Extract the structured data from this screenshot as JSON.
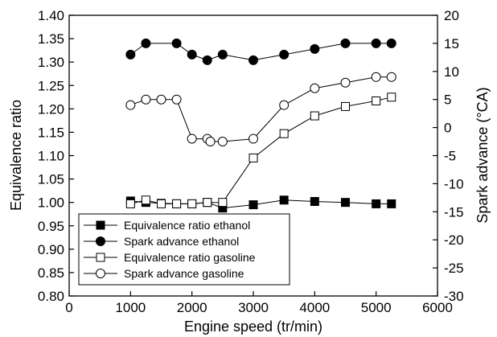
{
  "chart_data": {
    "type": "line",
    "title": "",
    "xlabel": "Engine speed (tr/min)",
    "ylabel": "Equivalence ratio",
    "y2label": "Spark advance (°CA)",
    "xlim": [
      0,
      6000
    ],
    "ylim": [
      0.8,
      1.4
    ],
    "y2lim": [
      -30,
      20
    ],
    "xticks": [
      "0",
      "1000",
      "2000",
      "3000",
      "4000",
      "5000",
      "6000"
    ],
    "yticks": [
      "0.80",
      "0.85",
      "0.90",
      "0.95",
      "1.00",
      "1.05",
      "1.10",
      "1.15",
      "1.20",
      "1.25",
      "1.30",
      "1.35",
      "1.40"
    ],
    "y2ticks": [
      "-30",
      "-25",
      "-20",
      "-15",
      "-10",
      "-5",
      "0",
      "5",
      "10",
      "15",
      "20"
    ],
    "grid": false,
    "legend_position": "bottom-left",
    "series": [
      {
        "name": "Equivalence ratio ethanol",
        "axis": "left",
        "marker": "square-filled",
        "x": [
          1000,
          1250,
          1500,
          1750,
          2000,
          2250,
          2500,
          3000,
          3500,
          4000,
          4500,
          5000,
          5250
        ],
        "y": [
          1.003,
          1.0,
          0.998,
          0.997,
          0.997,
          1.0,
          0.988,
          0.995,
          1.005,
          1.002,
          1.0,
          0.997,
          0.997
        ]
      },
      {
        "name": "Spark advance ethanol",
        "axis": "right",
        "marker": "circle-filled",
        "x": [
          1000,
          1250,
          1750,
          2000,
          2250,
          2500,
          3000,
          3500,
          4000,
          4500,
          5000,
          5250
        ],
        "y": [
          13.0,
          15.0,
          15.0,
          13.0,
          12.0,
          13.0,
          12.0,
          13.0,
          14.0,
          15.0,
          15.0,
          15.0
        ]
      },
      {
        "name": "Equivalence ratio gasoline",
        "axis": "left",
        "marker": "square-open",
        "x": [
          1000,
          1250,
          1500,
          1750,
          2000,
          2250,
          2500,
          3000,
          3500,
          4000,
          4500,
          5000,
          5250
        ],
        "y": [
          0.997,
          1.005,
          0.997,
          0.997,
          0.997,
          1.0,
          1.0,
          1.095,
          1.147,
          1.185,
          1.205,
          1.217,
          1.225
        ]
      },
      {
        "name": "Spark advance gasoline",
        "axis": "right",
        "marker": "circle-open",
        "x": [
          1000,
          1250,
          1500,
          1750,
          2000,
          2250,
          2300,
          2500,
          3000,
          3500,
          4000,
          4500,
          5000,
          5250
        ],
        "y": [
          4.0,
          5.0,
          5.0,
          5.0,
          -2.0,
          -2.0,
          -2.5,
          -2.5,
          -2.0,
          4.0,
          7.0,
          8.0,
          9.0,
          9.0
        ]
      }
    ]
  }
}
